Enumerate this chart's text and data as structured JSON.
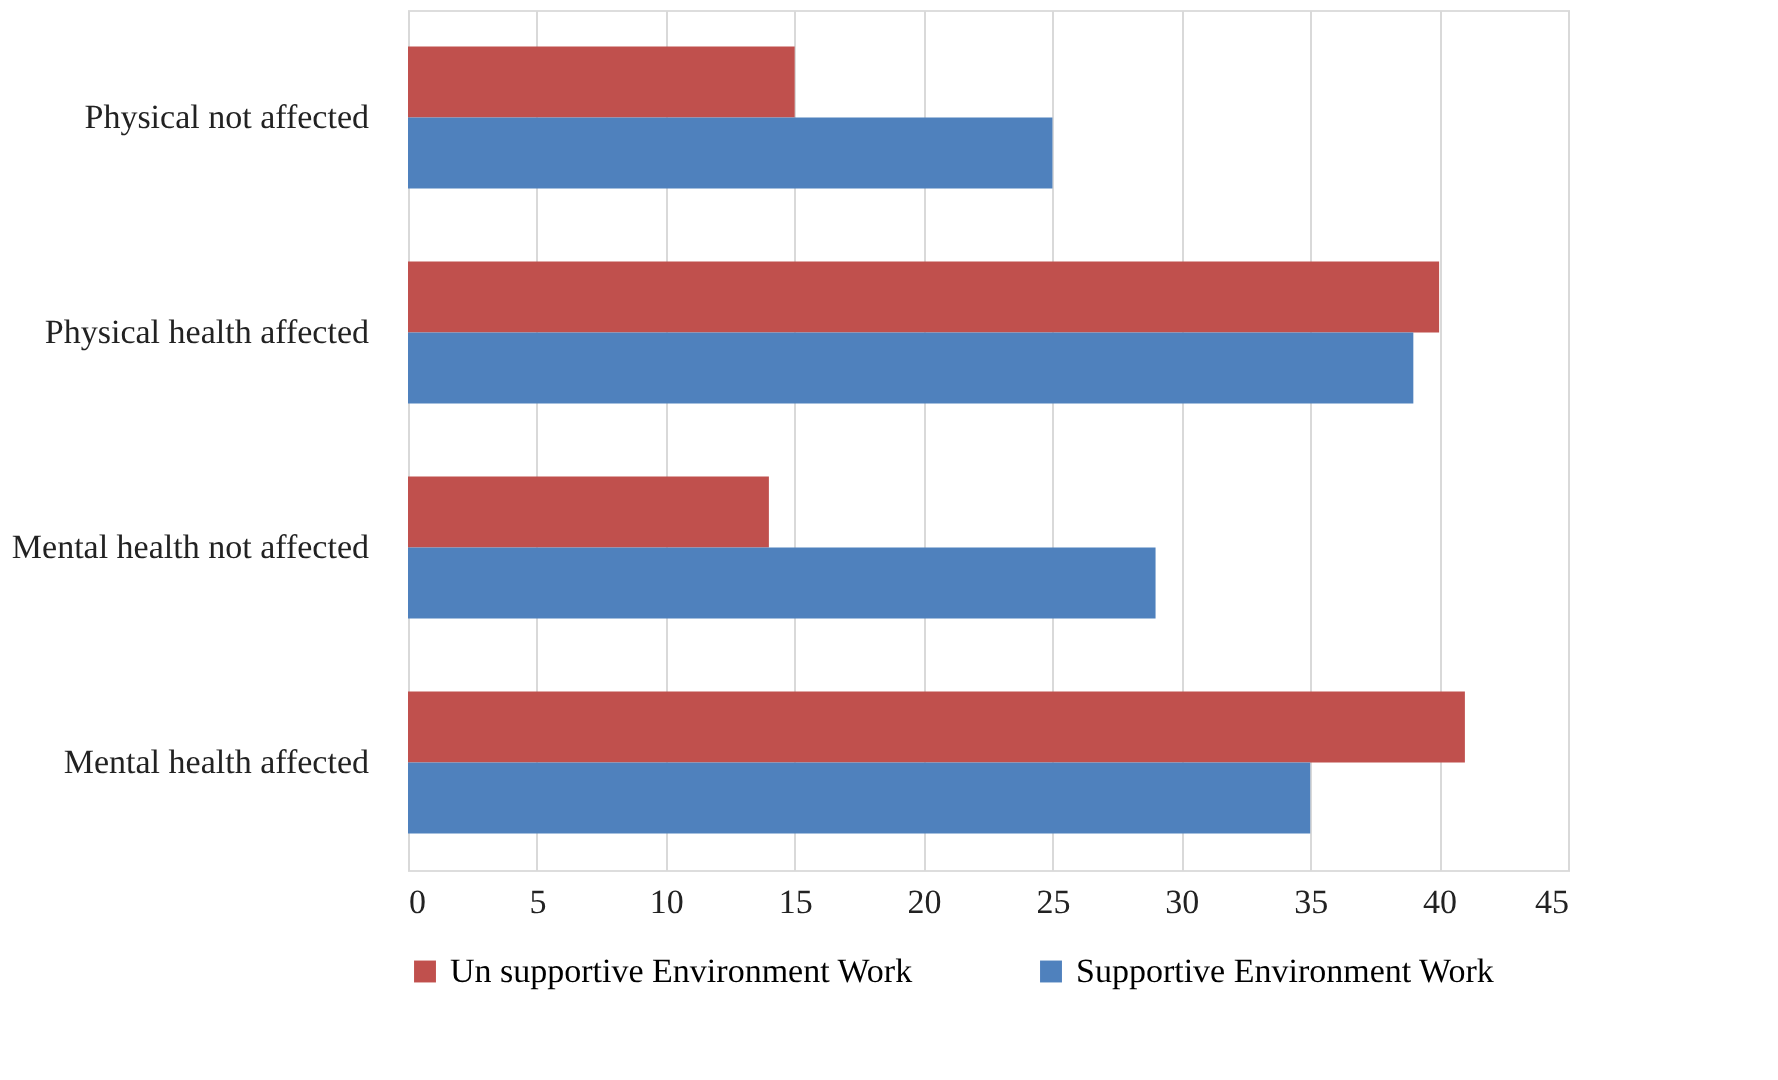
{
  "chart_data": {
    "type": "bar",
    "orientation": "horizontal",
    "categories": [
      "Physical  not affected",
      "Physical  health affected",
      "Mental health not affected",
      "Mental health  affected"
    ],
    "series": [
      {
        "name": "Un supportive Environment Work",
        "color": "#c0504d",
        "values": [
          15,
          40,
          14,
          41
        ]
      },
      {
        "name": "Supportive Environment Work",
        "color": "#4f81bd",
        "values": [
          25,
          39,
          29,
          35
        ]
      }
    ],
    "xlim": [
      0,
      45
    ],
    "xticks": [
      0,
      5,
      10,
      15,
      20,
      25,
      30,
      35,
      40,
      45
    ],
    "grid": "x",
    "legend": "bottom"
  }
}
